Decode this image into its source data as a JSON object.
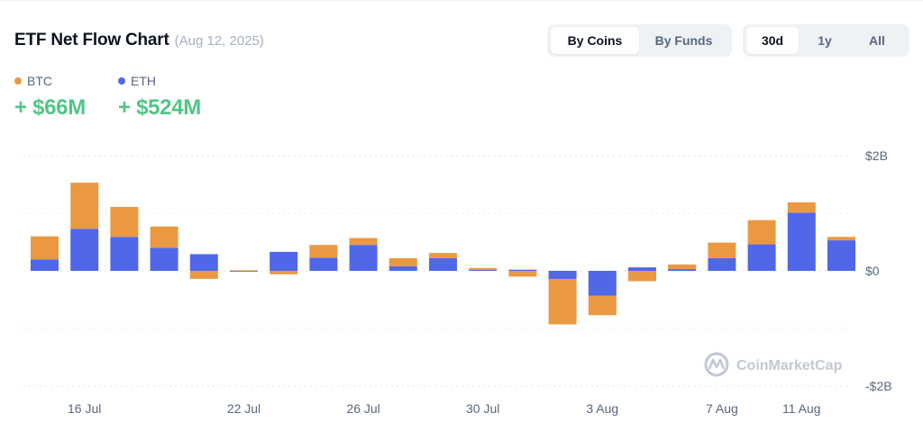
{
  "header": {
    "title": "ETF Net Flow Chart",
    "date": "(Aug 12, 2025)"
  },
  "toggles": {
    "view": [
      "By Coins",
      "By Funds"
    ],
    "view_selected": "By Coins",
    "range": [
      "30d",
      "1y",
      "All"
    ],
    "range_selected": "30d"
  },
  "legend": {
    "btc": {
      "label": "BTC",
      "value": "+ $66M",
      "color": "#ea9942"
    },
    "eth": {
      "label": "ETH",
      "value": "+ $524M",
      "color": "#5067ea"
    }
  },
  "watermark": "CoinMarketCap",
  "chart_data": {
    "type": "bar",
    "stacked": true,
    "title": "ETF Net Flow Chart",
    "y_unit": "$M",
    "ylim": [
      -2000,
      2000
    ],
    "y_ticks": [
      "$2B",
      "$0",
      "-$2B"
    ],
    "y_tick_values": [
      2000,
      0,
      -2000
    ],
    "x_labels": [
      {
        "label": "16 Jul",
        "index": 1
      },
      {
        "label": "22 Jul",
        "index": 5
      },
      {
        "label": "26 Jul",
        "index": 8
      },
      {
        "label": "30 Jul",
        "index": 11
      },
      {
        "label": "3 Aug",
        "index": 14
      },
      {
        "label": "7 Aug",
        "index": 17
      },
      {
        "label": "11 Aug",
        "index": 19
      }
    ],
    "series": [
      {
        "name": "ETH",
        "color": "#5067ea",
        "values": [
          200,
          730,
          590,
          400,
          290,
          -5,
          330,
          230,
          450,
          80,
          220,
          20,
          20,
          -140,
          -430,
          60,
          30,
          220,
          460,
          1010,
          530
        ]
      },
      {
        "name": "BTC",
        "color": "#ea9942",
        "values": [
          400,
          800,
          520,
          370,
          -140,
          10,
          -60,
          220,
          120,
          140,
          90,
          30,
          -100,
          -790,
          -340,
          -180,
          80,
          270,
          420,
          180,
          60
        ]
      }
    ]
  }
}
